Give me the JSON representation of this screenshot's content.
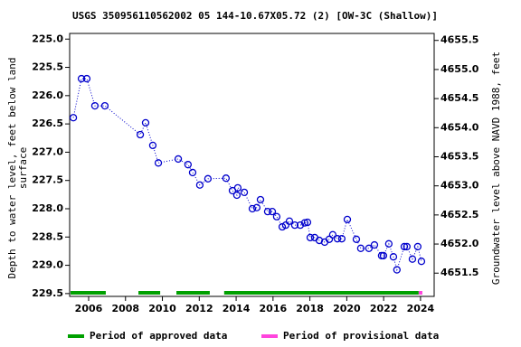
{
  "chart_data": {
    "type": "scatter",
    "title": "USGS 350956110562002 05 144-10.67X05.72 (2) [OW-3C (Shallow)]",
    "ylabel": [
      "Depth to water level, feet below land",
      "surface"
    ],
    "y2label": "Groundwater level above NAVD 1988, feet",
    "xlim": [
      2004.97,
      2024.74
    ],
    "xticks": [
      2006,
      2008,
      2010,
      2012,
      2014,
      2016,
      2018,
      2020,
      2022,
      2024
    ],
    "ylim": [
      224.9,
      229.55
    ],
    "yticks": [
      {
        "value": 225,
        "label": "225.0"
      },
      225.5,
      {
        "value": 226,
        "label": "226.0"
      },
      226.5,
      {
        "value": 227,
        "label": "227.0"
      },
      227.5,
      {
        "value": 228,
        "label": "228.0"
      },
      228.5,
      {
        "value": 229,
        "label": "229.0"
      },
      229.5
    ],
    "y2lim": [
      4655.62,
      4651.1
    ],
    "y2ticks": [
      4655.5,
      {
        "value": 4655,
        "label": "4655.0"
      },
      4654.5,
      {
        "value": 4654,
        "label": "4654.0"
      },
      4653.5,
      {
        "value": 4653,
        "label": "4653.0"
      },
      4652.5,
      {
        "value": 4652,
        "label": "4652.0"
      },
      4651.5
    ],
    "series": [
      {
        "color": "#0000cc",
        "x": [
          2005.17,
          2005.61,
          2005.9,
          2006.34,
          2006.88,
          2008.8,
          2009.09,
          2009.48,
          2009.78,
          2010.86,
          2011.39,
          2011.64,
          2012.03,
          2012.47,
          2013.45,
          2013.8,
          2014.04,
          2014.09,
          2014.44,
          2014.88,
          2015.12,
          2015.32,
          2015.71,
          2015.96,
          2016.2,
          2016.5,
          2016.69,
          2016.89,
          2017.18,
          2017.48,
          2017.72,
          2017.87,
          2018.02,
          2018.26,
          2018.51,
          2018.8,
          2019.05,
          2019.24,
          2019.49,
          2019.73,
          2020.03,
          2020.52,
          2020.76,
          2021.2,
          2021.5,
          2021.89,
          2021.99,
          2022.28,
          2022.53,
          2022.72,
          2023.12,
          2023.26,
          2023.56,
          2023.85,
          2024.05
        ],
        "values": [
          226.39,
          225.7,
          225.7,
          226.18,
          226.18,
          226.69,
          226.48,
          226.88,
          227.19,
          227.12,
          227.22,
          227.36,
          227.58,
          227.47,
          227.46,
          227.68,
          227.76,
          227.63,
          227.71,
          228.0,
          227.98,
          227.84,
          228.05,
          228.05,
          228.14,
          228.32,
          228.29,
          228.22,
          228.29,
          228.29,
          228.25,
          228.24,
          228.51,
          228.51,
          228.56,
          228.59,
          228.54,
          228.46,
          228.53,
          228.53,
          228.19,
          228.54,
          228.7,
          228.7,
          228.64,
          228.83,
          228.83,
          228.62,
          228.85,
          229.08,
          228.67,
          228.67,
          228.89,
          228.67,
          228.93
        ]
      }
    ],
    "periods": [
      {
        "name": "Period of approved data",
        "color": "#00a000",
        "ranges": [
          [
            2005.02,
            2006.93
          ],
          [
            2008.7,
            2009.88
          ],
          [
            2010.76,
            2012.57
          ],
          [
            2013.35,
            2023.9
          ]
        ]
      },
      {
        "name": "Period of provisional data",
        "color": "#ff44dd",
        "ranges": [
          [
            2023.9,
            2024.1
          ]
        ]
      }
    ]
  }
}
